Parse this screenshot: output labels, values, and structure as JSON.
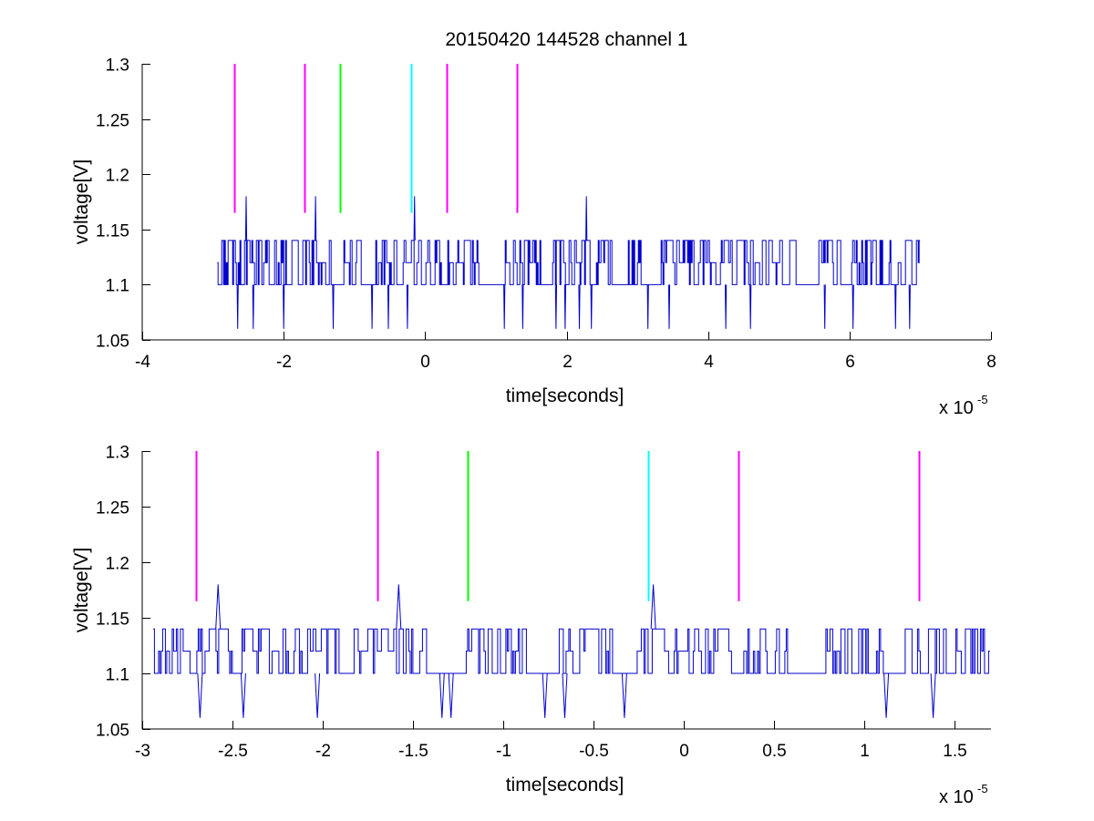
{
  "chart_data": [
    {
      "type": "line",
      "title": "20150420 144528 channel 1",
      "xlabel": "time[seconds]",
      "ylabel": "voltage[V]",
      "x_exponent_base": "x 10",
      "x_exponent_power": "-5",
      "xlim": [
        -4,
        8
      ],
      "ylim": [
        1.05,
        1.3
      ],
      "xticks": [
        -4,
        -2,
        0,
        2,
        4,
        6,
        8
      ],
      "xtick_labels": [
        "-4",
        "-2",
        "0",
        "2",
        "4",
        "6",
        "8"
      ],
      "yticks": [
        1.05,
        1.1,
        1.15,
        1.2,
        1.25,
        1.3
      ],
      "ytick_labels": [
        "1.05",
        "1.1",
        "1.15",
        "1.2",
        "1.25",
        "1.3"
      ],
      "grid": false,
      "series": [
        {
          "color": "#0000cc",
          "x_range": [
            -2.94,
            7.0
          ],
          "levels": [
            1.06,
            1.1,
            1.12,
            1.14,
            1.18
          ],
          "spikes": [
            {
              "x": -2.53,
              "y": 1.18
            },
            {
              "x": -1.55,
              "y": 1.18
            },
            {
              "x": -0.15,
              "y": 1.18
            },
            {
              "x": 2.28,
              "y": 1.18
            },
            {
              "x": -2.65,
              "y": 1.06
            },
            {
              "x": -2.43,
              "y": 1.06
            },
            {
              "x": -2.0,
              "y": 1.06
            },
            {
              "x": -1.3,
              "y": 1.06
            },
            {
              "x": -0.75,
              "y": 1.06
            },
            {
              "x": -0.52,
              "y": 1.06
            },
            {
              "x": -0.25,
              "y": 1.06
            },
            {
              "x": 1.12,
              "y": 1.06
            },
            {
              "x": 1.38,
              "y": 1.06
            },
            {
              "x": 1.85,
              "y": 1.06
            },
            {
              "x": 1.98,
              "y": 1.06
            },
            {
              "x": 2.18,
              "y": 1.06
            },
            {
              "x": 2.35,
              "y": 1.06
            },
            {
              "x": 3.15,
              "y": 1.06
            },
            {
              "x": 3.45,
              "y": 1.06
            },
            {
              "x": 4.25,
              "y": 1.06
            },
            {
              "x": 4.6,
              "y": 1.06
            },
            {
              "x": 5.65,
              "y": 1.06
            },
            {
              "x": 6.05,
              "y": 1.06
            },
            {
              "x": 6.65,
              "y": 1.06
            },
            {
              "x": 6.85,
              "y": 1.06
            }
          ],
          "gaps": [
            [
              -1.24,
              -1.18
            ],
            [
              -0.9,
              -0.7
            ],
            [
              0.75,
              1.1
            ],
            [
              2.65,
              2.85
            ],
            [
              3.05,
              3.3
            ],
            [
              5.3,
              5.55
            ]
          ]
        }
      ],
      "markers": [
        {
          "x": -2.7,
          "color": "#ff00ff",
          "y_range": [
            1.165,
            1.3
          ]
        },
        {
          "x": -1.7,
          "color": "#ff00ff",
          "y_range": [
            1.165,
            1.3
          ]
        },
        {
          "x": -1.2,
          "color": "#00ff00",
          "y_range": [
            1.165,
            1.3
          ]
        },
        {
          "x": -0.2,
          "color": "#00ffff",
          "y_range": [
            1.165,
            1.3
          ]
        },
        {
          "x": 0.3,
          "color": "#ff00ff",
          "y_range": [
            1.165,
            1.3
          ]
        },
        {
          "x": 1.3,
          "color": "#ff00ff",
          "y_range": [
            1.165,
            1.3
          ]
        }
      ]
    },
    {
      "type": "line",
      "xlabel": "time[seconds]",
      "ylabel": "voltage[V]",
      "x_exponent_base": "x 10",
      "x_exponent_power": "-5",
      "xlim": [
        -3.0,
        1.7
      ],
      "ylim": [
        1.05,
        1.3
      ],
      "xticks": [
        -3,
        -2.5,
        -2,
        -1.5,
        -1,
        -0.5,
        0,
        0.5,
        1,
        1.5
      ],
      "xtick_labels": [
        "-3",
        "-2.5",
        "-2",
        "-1.5",
        "-1",
        "-0.5",
        "0",
        "0.5",
        "1",
        "1.5"
      ],
      "yticks": [
        1.05,
        1.1,
        1.15,
        1.2,
        1.25,
        1.3
      ],
      "ytick_labels": [
        "1.05",
        "1.1",
        "1.15",
        "1.2",
        "1.25",
        "1.3"
      ],
      "grid": false,
      "series": [
        {
          "color": "#0000cc",
          "x_range": [
            -2.94,
            1.7
          ],
          "levels": [
            1.06,
            1.1,
            1.12,
            1.14,
            1.18
          ],
          "spikes": [
            {
              "x": -2.58,
              "y": 1.18
            },
            {
              "x": -1.58,
              "y": 1.18
            },
            {
              "x": -0.17,
              "y": 1.18
            },
            {
              "x": -2.68,
              "y": 1.06
            },
            {
              "x": -2.44,
              "y": 1.06
            },
            {
              "x": -2.03,
              "y": 1.06
            },
            {
              "x": -1.34,
              "y": 1.06
            },
            {
              "x": -1.29,
              "y": 1.06
            },
            {
              "x": -0.77,
              "y": 1.06
            },
            {
              "x": -0.66,
              "y": 1.06
            },
            {
              "x": -0.33,
              "y": 1.06
            },
            {
              "x": 1.12,
              "y": 1.06
            },
            {
              "x": 1.38,
              "y": 1.06
            }
          ],
          "gaps": [
            [
              -1.9,
              -1.83
            ],
            [
              -1.43,
              -1.23
            ],
            [
              -0.88,
              -0.72
            ],
            [
              -0.4,
              -0.27
            ],
            [
              0.57,
              0.78
            ],
            [
              1.1,
              1.2
            ],
            [
              1.45,
              1.5
            ]
          ]
        }
      ],
      "markers": [
        {
          "x": -2.7,
          "color": "#ff00ff",
          "y_range": [
            1.165,
            1.3
          ]
        },
        {
          "x": -1.7,
          "color": "#ff00ff",
          "y_range": [
            1.165,
            1.3
          ]
        },
        {
          "x": -1.2,
          "color": "#00ff00",
          "y_range": [
            1.165,
            1.3
          ]
        },
        {
          "x": -0.2,
          "color": "#00ffff",
          "y_range": [
            1.165,
            1.3
          ]
        },
        {
          "x": 0.3,
          "color": "#ff00ff",
          "y_range": [
            1.165,
            1.3
          ]
        },
        {
          "x": 1.3,
          "color": "#ff00ff",
          "y_range": [
            1.165,
            1.3
          ]
        }
      ]
    }
  ]
}
